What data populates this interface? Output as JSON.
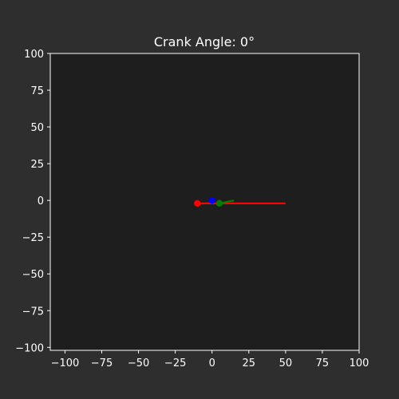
{
  "chart_data": {
    "type": "line",
    "title": "Crank Angle: 0°",
    "xlabel": "",
    "ylabel": "",
    "xlim": [
      -110,
      100
    ],
    "ylim": [
      -102,
      100
    ],
    "xticks": [
      -100,
      -75,
      -50,
      -25,
      0,
      25,
      50,
      75,
      100
    ],
    "yticks": [
      -100,
      -75,
      -50,
      -25,
      0,
      25,
      50,
      75,
      100
    ],
    "xtick_labels": [
      "−100",
      "−75",
      "−50",
      "−25",
      "0",
      "25",
      "50",
      "75",
      "100"
    ],
    "ytick_labels": [
      "−100",
      "−75",
      "−50",
      "−25",
      "0",
      "25",
      "50",
      "75",
      "100"
    ],
    "grid": false,
    "series": [
      {
        "color": "#ff0000",
        "points": [
          [
            -10,
            -2
          ],
          [
            50,
            -2
          ]
        ],
        "marker_points": [
          [
            -10,
            -2
          ]
        ]
      },
      {
        "color": "#0000ff",
        "points": [
          [
            0,
            0
          ]
        ],
        "marker_points": [
          [
            0,
            0
          ]
        ]
      },
      {
        "color": "#008000",
        "points": [
          [
            5,
            -2
          ],
          [
            15,
            0
          ]
        ],
        "marker_points": [
          [
            5,
            -2
          ]
        ]
      }
    ]
  },
  "colors": {
    "figure_background": "#2e2e2e",
    "axes_background": "#1e1e1e",
    "foreground": "#ffffff"
  }
}
